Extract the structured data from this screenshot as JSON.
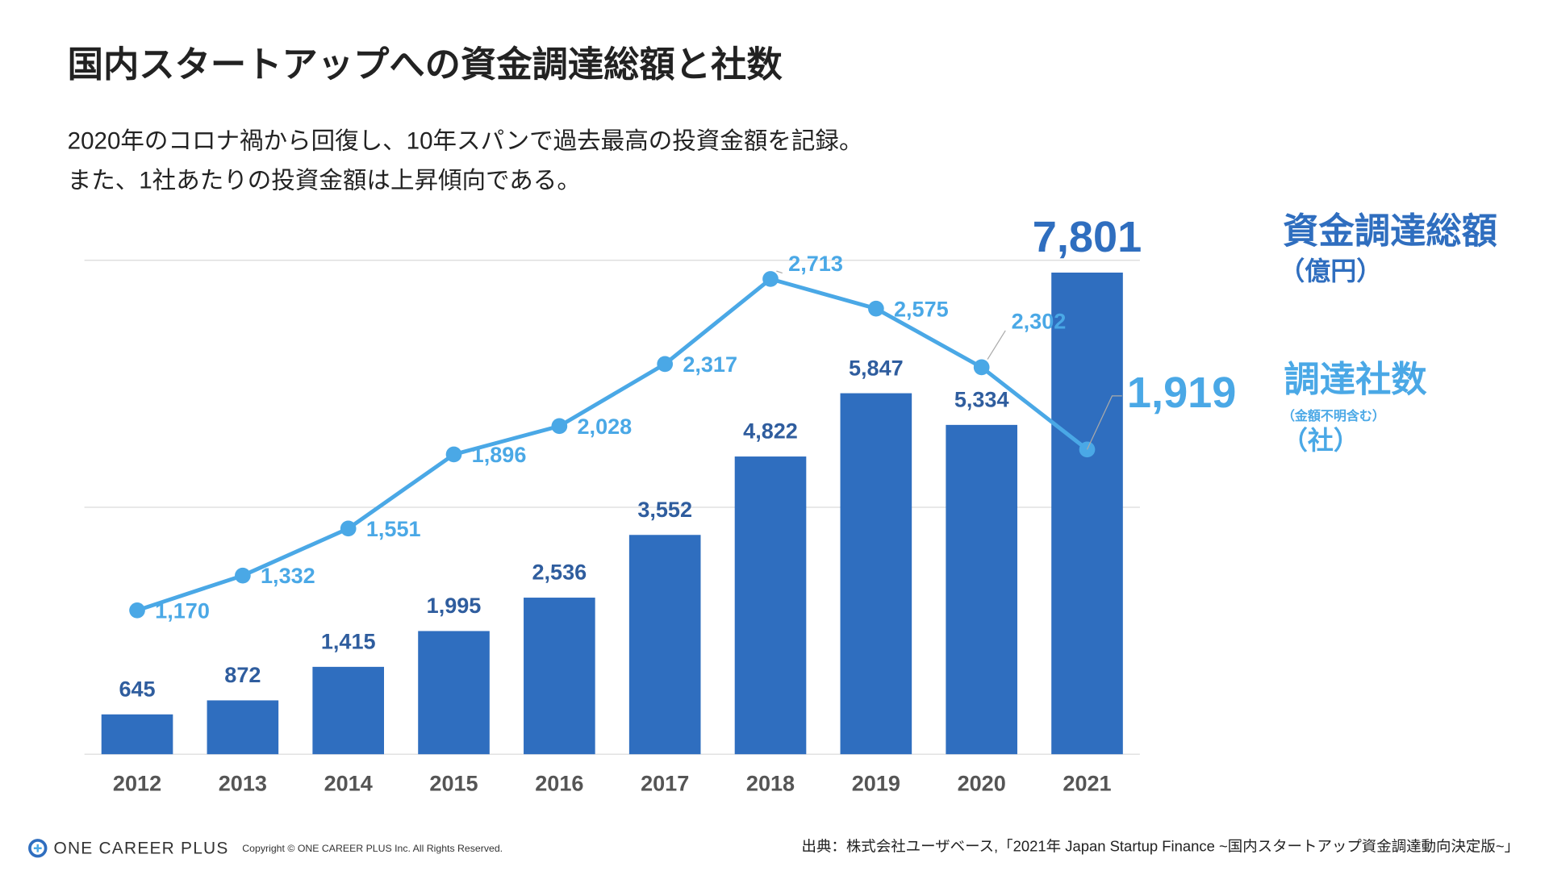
{
  "chart_data": {
    "type": "bar_line",
    "title": "国内スタートアップへの資金調達総額と社数",
    "subtitle": [
      "2020年のコロナ禍から回復し、10年スパンで過去最高の投資金額を記録。",
      "また、1社あたりの投資金額は上昇傾向である。"
    ],
    "categories": [
      "2012",
      "2013",
      "2014",
      "2015",
      "2016",
      "2017",
      "2018",
      "2019",
      "2020",
      "2021"
    ],
    "series": [
      {
        "name": "資金調達総額",
        "unit": "（億円）",
        "color": "#2f6ebf",
        "type": "bar",
        "values": [
          645,
          872,
          1415,
          1995,
          2536,
          3552,
          4822,
          5847,
          5334,
          7801
        ],
        "value_labels": [
          "645",
          "872",
          "1,415",
          "1,995",
          "2,536",
          "3,552",
          "4,822",
          "5,847",
          "5,334",
          "7,801"
        ]
      },
      {
        "name": "調達社数",
        "note": "（金額不明含む）",
        "unit": "（社）",
        "color": "#4aa8e6",
        "type": "line",
        "axis": "y2",
        "values": [
          1170,
          1332,
          1551,
          1896,
          2028,
          2317,
          2713,
          2575,
          2302,
          1919
        ],
        "value_labels": [
          "1,170",
          "1,332",
          "1,551",
          "1,896",
          "2,028",
          "2,317",
          "2,713",
          "2,575",
          "2,302",
          "1,919"
        ]
      }
    ],
    "ylim": [
      0,
      8000
    ],
    "yticks": [
      0,
      4000,
      8000
    ],
    "y2lim": [
      500,
      2800
    ],
    "grid": true
  },
  "footer": {
    "logo": "ONE CAREER PLUS",
    "copyright": "Copyright © ONE CAREER PLUS Inc. All Rights Reserved.",
    "source": "出典：株式会社ユーザベース,「2021年 Japan Startup Finance ~国内スタートアップ資金調達動向決定版~」"
  }
}
